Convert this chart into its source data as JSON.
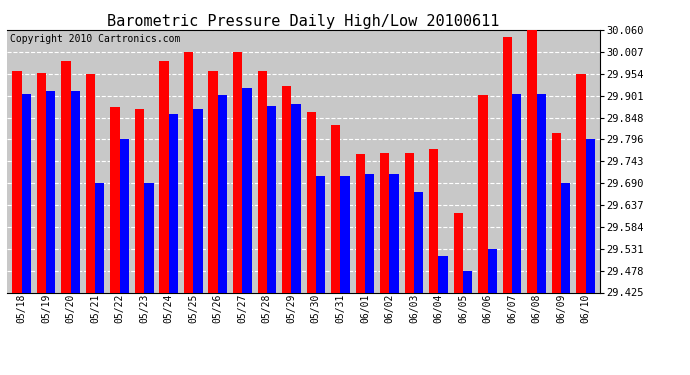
{
  "title": "Barometric Pressure Daily High/Low 20100611",
  "copyright": "Copyright 2010 Cartronics.com",
  "dates": [
    "05/18",
    "05/19",
    "05/20",
    "05/21",
    "05/22",
    "05/23",
    "05/24",
    "05/25",
    "05/26",
    "05/27",
    "05/28",
    "05/29",
    "05/30",
    "05/31",
    "06/01",
    "06/02",
    "06/03",
    "06/04",
    "06/05",
    "06/06",
    "06/07",
    "06/08",
    "06/09",
    "06/10"
  ],
  "highs": [
    29.96,
    29.955,
    29.985,
    29.954,
    29.873,
    29.87,
    29.985,
    30.007,
    29.962,
    30.007,
    29.96,
    29.925,
    29.862,
    29.83,
    29.76,
    29.762,
    29.762,
    29.772,
    29.618,
    29.902,
    30.042,
    30.065,
    29.812,
    29.954
  ],
  "lows": [
    29.905,
    29.913,
    29.913,
    29.69,
    29.796,
    29.69,
    29.858,
    29.87,
    29.903,
    29.92,
    29.875,
    29.88,
    29.707,
    29.707,
    29.712,
    29.712,
    29.668,
    29.513,
    29.478,
    29.531,
    29.905,
    29.905,
    29.69,
    29.796
  ],
  "ylim_min": 29.425,
  "ylim_max": 30.06,
  "yticks": [
    29.425,
    29.478,
    29.531,
    29.584,
    29.637,
    29.69,
    29.743,
    29.796,
    29.848,
    29.901,
    29.954,
    30.007,
    30.06
  ],
  "bar_width": 0.38,
  "high_color": "#ff0000",
  "low_color": "#0000ff",
  "bg_color": "#ffffff",
  "plot_bg_color": "#c8c8c8",
  "grid_color": "#ffffff",
  "title_fontsize": 11,
  "copyright_fontsize": 7,
  "figsize": [
    6.9,
    3.75
  ],
  "dpi": 100
}
